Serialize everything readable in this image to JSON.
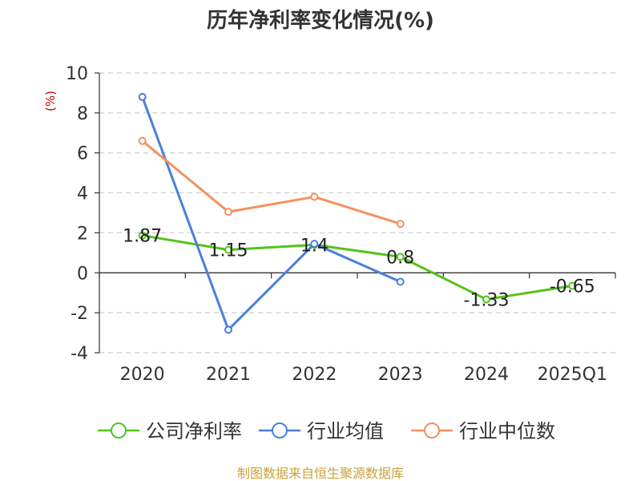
{
  "chart_data": {
    "type": "line",
    "title": "历年净利率变化情况(%)",
    "unit_label": "(%)",
    "source": "制图数据来自恒生聚源数据库",
    "categories": [
      "2020",
      "2021",
      "2022",
      "2023",
      "2024",
      "2025Q1"
    ],
    "yticks": [
      "10",
      "8",
      "6",
      "4",
      "2",
      "0",
      "-2",
      "-4"
    ],
    "ylim": [
      -4,
      10
    ],
    "grid": true,
    "legend_position": "bottom",
    "series": [
      {
        "name": "公司净利率",
        "color": "#52c41a",
        "values": [
          1.87,
          1.15,
          1.4,
          0.8,
          -1.33,
          -0.65
        ],
        "labels": [
          "1.87",
          "1.15",
          "1.4",
          "0.8",
          "-1.33",
          "-0.65"
        ]
      },
      {
        "name": "行业均值",
        "color": "#4a7fdc",
        "values": [
          8.8,
          -2.85,
          1.45,
          -0.45,
          null,
          null
        ]
      },
      {
        "name": "行业中位数",
        "color": "#f4915e",
        "values": [
          6.6,
          3.05,
          3.8,
          2.45,
          null,
          null
        ]
      }
    ]
  }
}
